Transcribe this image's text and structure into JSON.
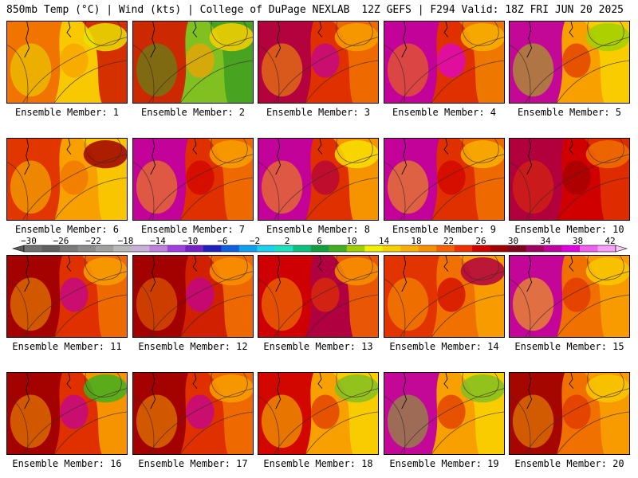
{
  "header": {
    "title": "850mb Temp (°C) | Wind (kts) | College of DuPage NEXLAB",
    "run_info": "12Z GEFS | F294 Valid: 18Z FRI JUN 20 2025"
  },
  "colorbar": {
    "tick_labels": [
      "−30",
      "−26",
      "−22",
      "−18",
      "−14",
      "−10",
      "−6",
      "−2",
      "2",
      "6",
      "10",
      "14",
      "18",
      "22",
      "26",
      "30",
      "34",
      "38",
      "42"
    ],
    "colors": [
      "#707070",
      "#606060",
      "#7a7a7a",
      "#8c8c8c",
      "#a0a0a0",
      "#b8b8b8",
      "#c8b0d8",
      "#c080e0",
      "#a040e0",
      "#7820c8",
      "#2020c0",
      "#1060e0",
      "#10a0f0",
      "#20d0f0",
      "#20e0c0",
      "#10c080",
      "#10a040",
      "#40b020",
      "#a0d000",
      "#f0f000",
      "#f8d000",
      "#f8b000",
      "#f89000",
      "#f86000",
      "#f03000",
      "#d00000",
      "#a00000",
      "#800020",
      "#a00060",
      "#c000a0",
      "#e000e0",
      "#f060f0",
      "#f8a0f8"
    ]
  },
  "panels": [
    {
      "label": "Ensemble Member: 1",
      "palette": [
        "#f07000",
        "#f8a000",
        "#f8c800",
        "#d02000",
        "#e8e000"
      ]
    },
    {
      "label": "Ensemble Member: 2",
      "palette": [
        "#d02000",
        "#f8a000",
        "#80c020",
        "#40a020",
        "#f8d000"
      ]
    },
    {
      "label": "Ensemble Member: 3",
      "palette": [
        "#b00040",
        "#c000a0",
        "#e03000",
        "#f07000",
        "#f8a000"
      ]
    },
    {
      "label": "Ensemble Member: 4",
      "palette": [
        "#c000a0",
        "#e000e0",
        "#e03000",
        "#f08000",
        "#f8b000"
      ]
    },
    {
      "label": "Ensemble Member: 5",
      "palette": [
        "#c000a0",
        "#e03000",
        "#f8a000",
        "#f8d000",
        "#a0d000"
      ]
    },
    {
      "label": "Ensemble Member: 6",
      "palette": [
        "#e03000",
        "#f07000",
        "#f8a000",
        "#f8c800",
        "#a00000"
      ]
    },
    {
      "label": "Ensemble Member: 7",
      "palette": [
        "#c000a0",
        "#d00000",
        "#e03000",
        "#f07000",
        "#f8a000"
      ]
    },
    {
      "label": "Ensemble Member: 8",
      "palette": [
        "#c000a0",
        "#b00040",
        "#e03000",
        "#f8a000",
        "#f8e000"
      ]
    },
    {
      "label": "Ensemble Member: 9",
      "palette": [
        "#c000a0",
        "#d00000",
        "#e03000",
        "#f07000",
        "#f8b000"
      ]
    },
    {
      "label": "Ensemble Member: 10",
      "palette": [
        "#b00040",
        "#a00000",
        "#d00000",
        "#e03000",
        "#f07000"
      ]
    },
    {
      "label": "Ensemble Member: 11",
      "palette": [
        "#a00000",
        "#c000a0",
        "#e03000",
        "#f07000",
        "#f8a000"
      ]
    },
    {
      "label": "Ensemble Member: 12",
      "palette": [
        "#a00000",
        "#c000a0",
        "#d02000",
        "#f07000",
        "#f89000"
      ]
    },
    {
      "label": "Ensemble Member: 13",
      "palette": [
        "#d00000",
        "#e03000",
        "#b00040",
        "#f06000",
        "#f89000"
      ]
    },
    {
      "label": "Ensemble Member: 14",
      "palette": [
        "#e03000",
        "#d00000",
        "#f07000",
        "#f8a000",
        "#b00040"
      ]
    },
    {
      "label": "Ensemble Member: 15",
      "palette": [
        "#c000a0",
        "#e03000",
        "#f07000",
        "#f8a000",
        "#f8c800"
      ]
    },
    {
      "label": "Ensemble Member: 16",
      "palette": [
        "#a00000",
        "#c000a0",
        "#e03000",
        "#f8a000",
        "#40b020"
      ]
    },
    {
      "label": "Ensemble Member: 17",
      "palette": [
        "#a00000",
        "#c000a0",
        "#e03000",
        "#f07000",
        "#f8a000"
      ]
    },
    {
      "label": "Ensemble Member: 18",
      "palette": [
        "#d00000",
        "#e03000",
        "#f8a000",
        "#f8d000",
        "#80c020"
      ]
    },
    {
      "label": "Ensemble Member: 19",
      "palette": [
        "#c000a0",
        "#e03000",
        "#f8a000",
        "#f8d000",
        "#80c020"
      ]
    },
    {
      "label": "Ensemble Member: 20",
      "palette": [
        "#a00000",
        "#e03000",
        "#f07000",
        "#f8a000",
        "#f8c800"
      ]
    }
  ]
}
